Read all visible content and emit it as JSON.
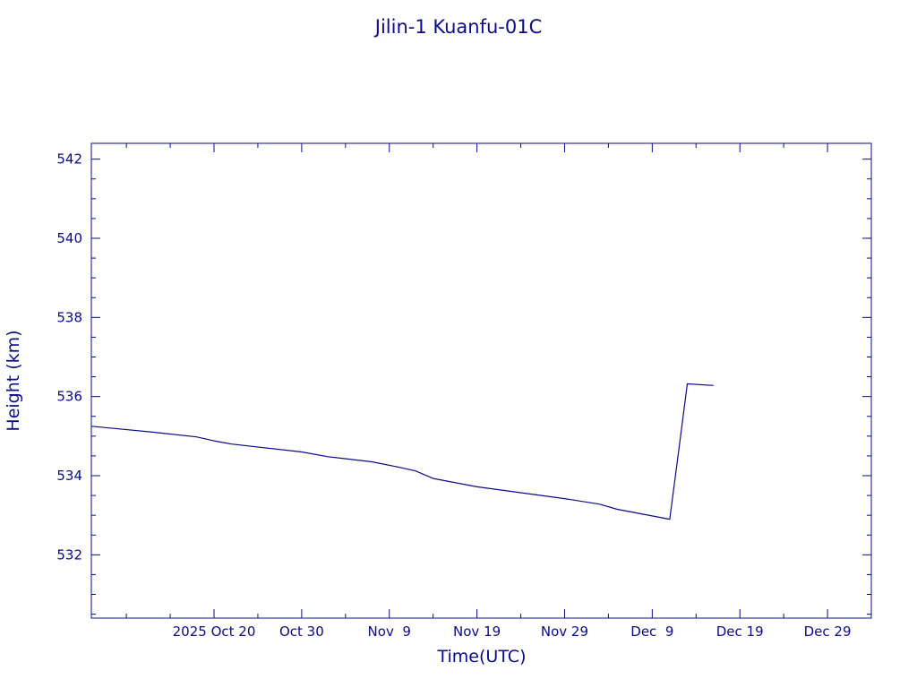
{
  "chart_data": {
    "type": "line",
    "title": "Jilin-1 Kuanfu-01C",
    "xlabel": "Time(UTC)",
    "ylabel": "Height (km)",
    "color": "#0a0a8c",
    "xlim": [
      "2025-10-06",
      "2026-01-03"
    ],
    "ylim": [
      530.4,
      542.4
    ],
    "x_ticks": [
      {
        "date": "2025-10-20",
        "label": "2025 Oct 20"
      },
      {
        "date": "2025-10-30",
        "label": "Oct 30"
      },
      {
        "date": "2025-11-09",
        "label": "Nov  9"
      },
      {
        "date": "2025-11-19",
        "label": "Nov 19"
      },
      {
        "date": "2025-11-29",
        "label": "Nov 29"
      },
      {
        "date": "2025-12-09",
        "label": "Dec  9"
      },
      {
        "date": "2025-12-19",
        "label": "Dec 19"
      },
      {
        "date": "2025-12-29",
        "label": "Dec 29"
      }
    ],
    "y_ticks": [
      532,
      534,
      536,
      538,
      540,
      542
    ],
    "series": [
      {
        "points": [
          {
            "x": "2025-10-06",
            "y": 535.25
          },
          {
            "x": "2025-10-13",
            "y": 535.1
          },
          {
            "x": "2025-10-18",
            "y": 534.98
          },
          {
            "x": "2025-10-20",
            "y": 534.88
          },
          {
            "x": "2025-10-22",
            "y": 534.8
          },
          {
            "x": "2025-10-30",
            "y": 534.6
          },
          {
            "x": "2025-11-02",
            "y": 534.48
          },
          {
            "x": "2025-11-07",
            "y": 534.35
          },
          {
            "x": "2025-11-10",
            "y": 534.22
          },
          {
            "x": "2025-11-12",
            "y": 534.12
          },
          {
            "x": "2025-11-14",
            "y": 533.93
          },
          {
            "x": "2025-11-19",
            "y": 533.72
          },
          {
            "x": "2025-11-29",
            "y": 533.42
          },
          {
            "x": "2025-12-03",
            "y": 533.28
          },
          {
            "x": "2025-12-05",
            "y": 533.15
          },
          {
            "x": "2025-12-11",
            "y": 532.9
          },
          {
            "x": "2025-12-12",
            "y": 534.6
          },
          {
            "x": "2025-12-13",
            "y": 536.32
          },
          {
            "x": "2025-12-16",
            "y": 536.28
          }
        ]
      }
    ],
    "grid": false,
    "legend": "none"
  }
}
